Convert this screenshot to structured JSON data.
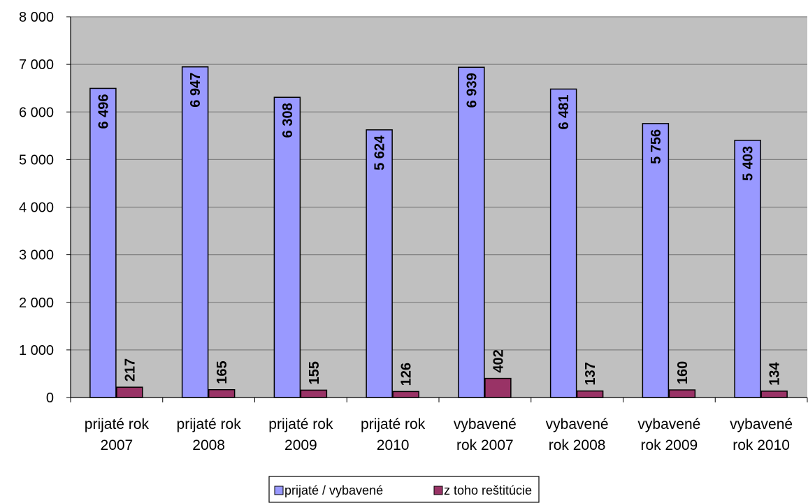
{
  "chart_data": {
    "type": "bar",
    "categories": [
      [
        "prijaté rok",
        "2007"
      ],
      [
        "prijaté rok",
        "2008"
      ],
      [
        "prijaté rok",
        "2009"
      ],
      [
        "prijaté rok",
        "2010"
      ],
      [
        "vybavené",
        "rok 2007"
      ],
      [
        "vybavené",
        "rok 2008"
      ],
      [
        "vybavené",
        "rok 2009"
      ],
      [
        "vybavené",
        "rok 2010"
      ]
    ],
    "series": [
      {
        "name": "prijaté / vybavené",
        "color": "#9999ff",
        "values": [
          6496,
          6947,
          6308,
          5624,
          6939,
          6481,
          5756,
          5403
        ],
        "labels": [
          "6 496",
          "6 947",
          "6 308",
          "5 624",
          "6 939",
          "6 481",
          "5 756",
          "5 403"
        ]
      },
      {
        "name": "z toho reštitúcie",
        "color": "#993366",
        "values": [
          217,
          165,
          155,
          126,
          402,
          137,
          160,
          134
        ],
        "labels": [
          "217",
          "165",
          "155",
          "126",
          "402",
          "137",
          "160",
          "134"
        ]
      }
    ],
    "title": "",
    "xlabel": "",
    "ylabel": "",
    "ylim": [
      0,
      8000
    ],
    "yticks": [
      0,
      1000,
      2000,
      3000,
      4000,
      5000,
      6000,
      7000,
      8000
    ],
    "ytick_labels": [
      "0",
      "1 000",
      "2 000",
      "3 000",
      "4 000",
      "5 000",
      "6 000",
      "7 000",
      "8 000"
    ],
    "grid": true,
    "plot_background": "#c0c0c0",
    "legend_position": "bottom"
  }
}
